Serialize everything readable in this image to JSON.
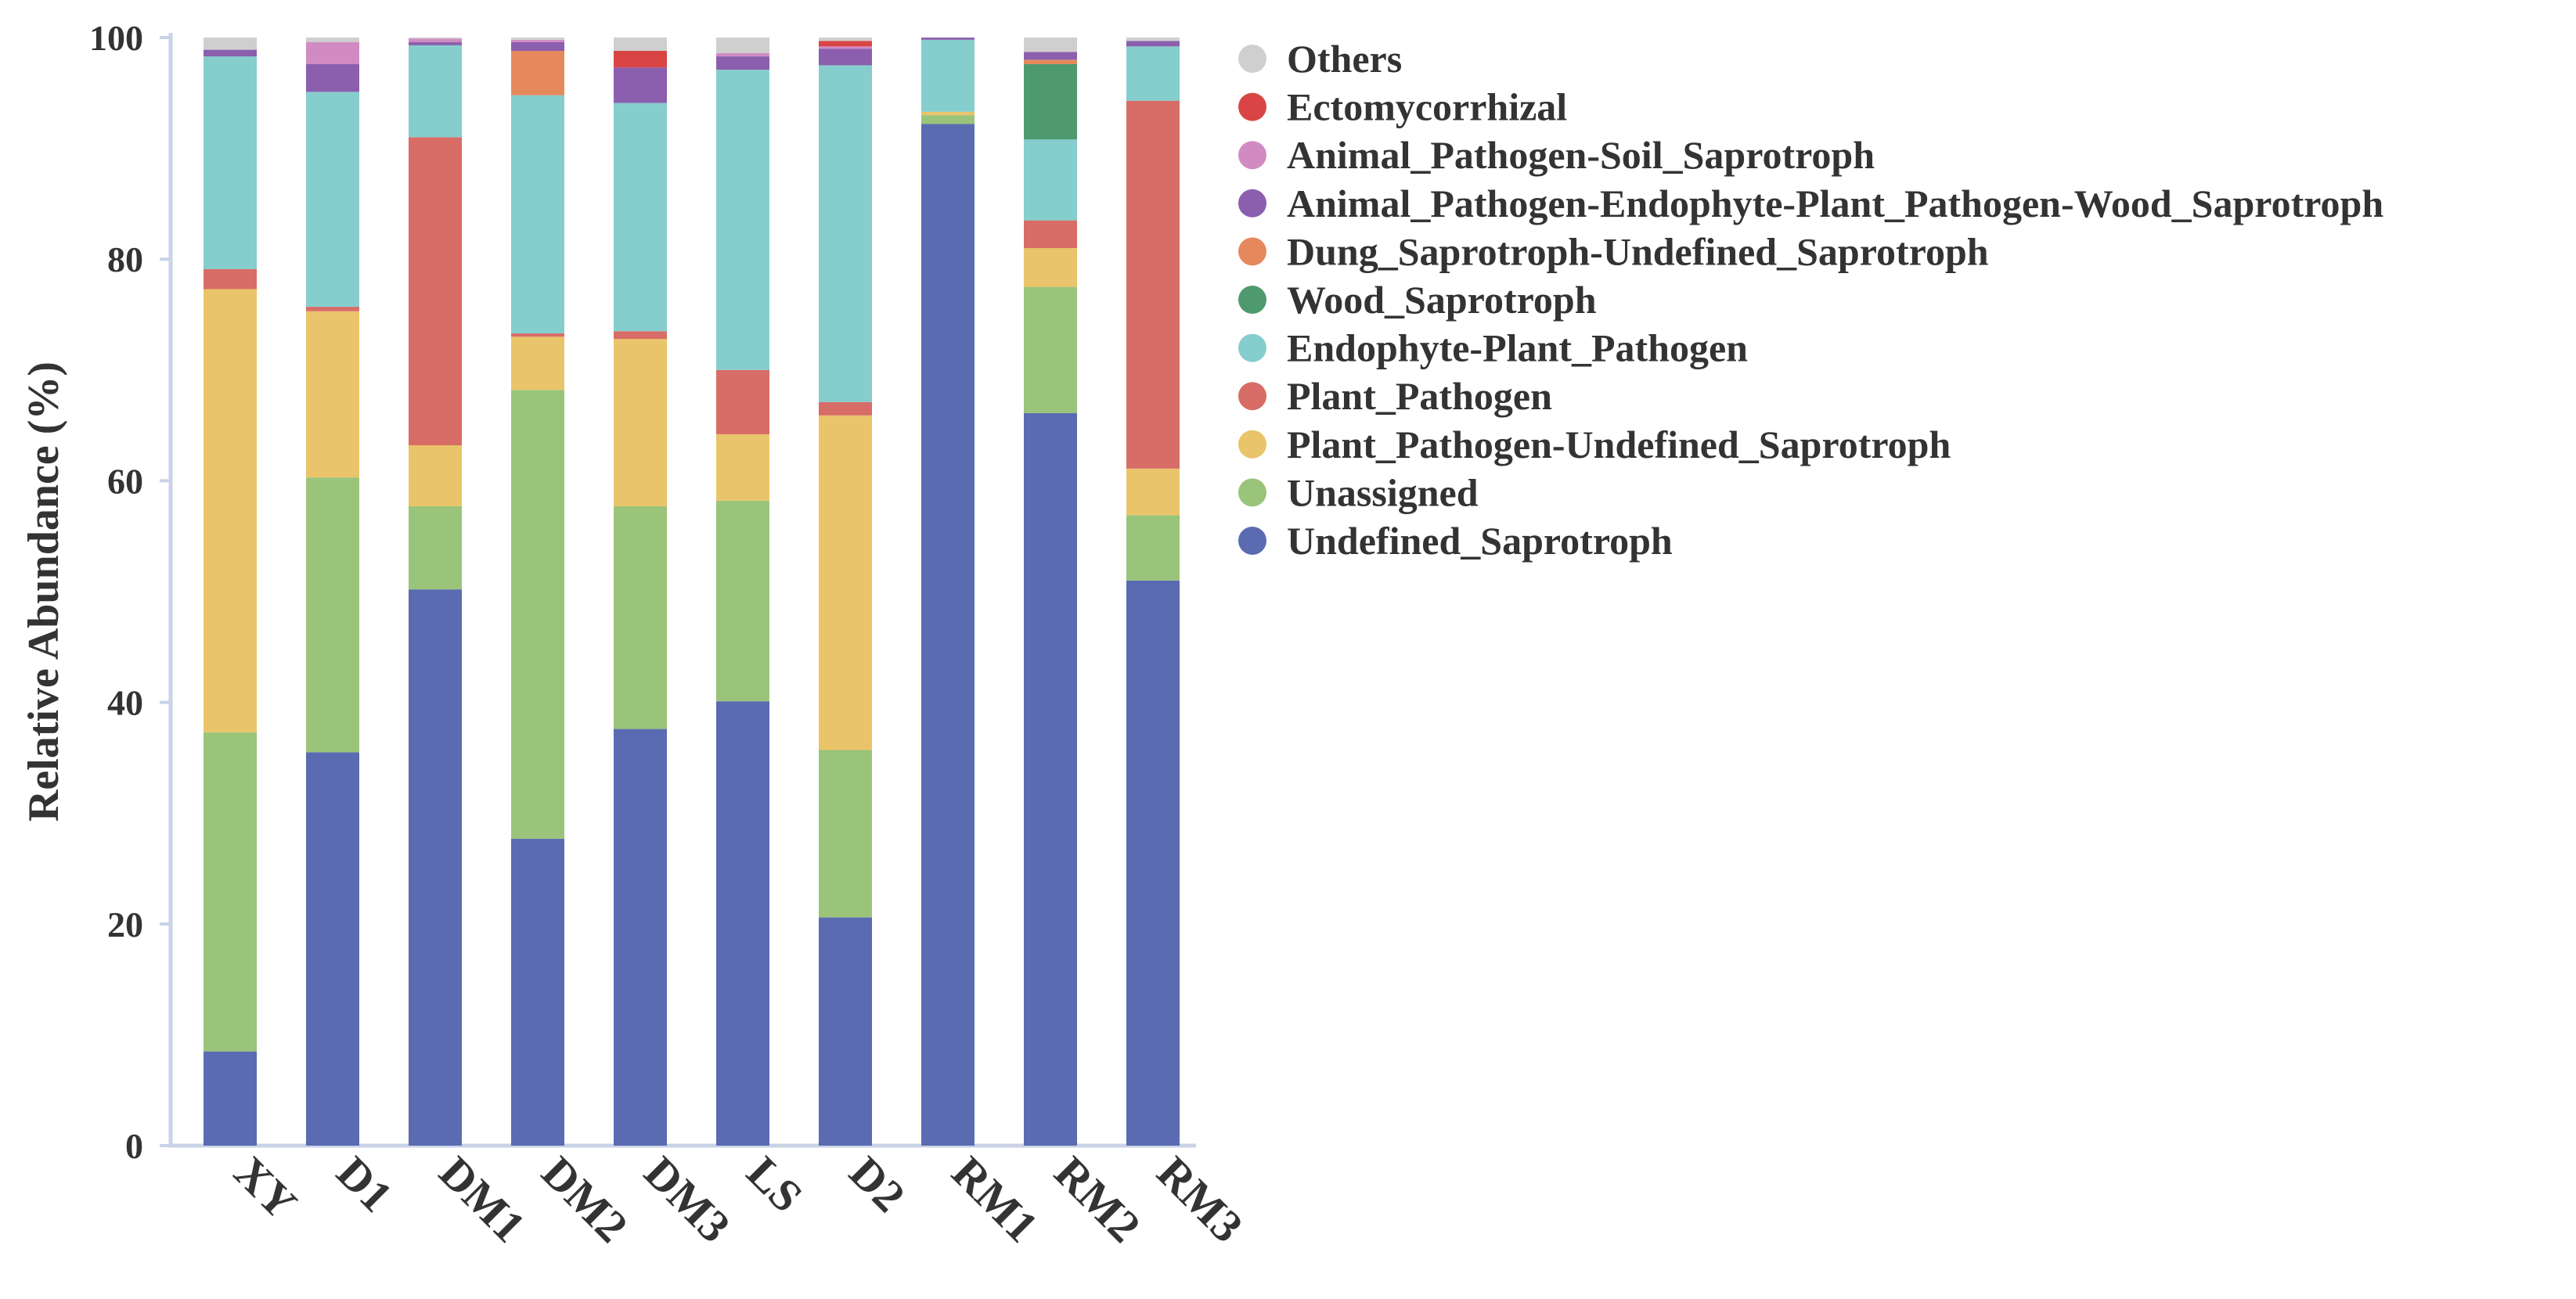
{
  "chart_data": {
    "type": "bar",
    "stacked": true,
    "title": "",
    "xlabel": "",
    "ylabel": "Relative Abundance (%)",
    "ylim": [
      0,
      100
    ],
    "yticks": [
      "0",
      "20",
      "40",
      "60",
      "80",
      "100"
    ],
    "grid": false,
    "legend_position": "right",
    "categories": [
      "XY",
      "D1",
      "DM1",
      "DM2",
      "DM3",
      "LS",
      "D2",
      "RM1",
      "RM2",
      "RM3"
    ],
    "series": [
      {
        "name": "Undefined_Saprotroph",
        "color": "#5A6BB2",
        "values": [
          8.5,
          35.5,
          50.2,
          27.7,
          37.6,
          40.1,
          20.6,
          92.2,
          66.1,
          51.0
        ]
      },
      {
        "name": "Unassigned",
        "color": "#9AC47A",
        "values": [
          28.8,
          24.8,
          7.5,
          40.5,
          20.1,
          18.1,
          15.1,
          0.8,
          11.4,
          5.9
        ]
      },
      {
        "name": "Plant_Pathogen-Undefined_Saprotroph",
        "color": "#EAC46A",
        "values": [
          40.0,
          15.0,
          5.5,
          4.8,
          15.1,
          6.0,
          30.2,
          0.3,
          3.5,
          4.2
        ]
      },
      {
        "name": "Plant_Pathogen",
        "color": "#D86C66",
        "values": [
          1.8,
          0.4,
          27.8,
          0.3,
          0.7,
          5.8,
          1.2,
          0.0,
          2.5,
          33.2
        ]
      },
      {
        "name": "Endophyte-Plant_Pathogen",
        "color": "#86CDCD",
        "values": [
          19.2,
          19.4,
          8.3,
          21.5,
          20.6,
          27.1,
          30.4,
          6.5,
          7.3,
          4.9
        ]
      },
      {
        "name": "Wood_Saprotroph",
        "color": "#4E9A6E",
        "values": [
          0.0,
          0.0,
          0.0,
          0.0,
          0.0,
          0.0,
          0.0,
          0.0,
          6.8,
          0.0
        ]
      },
      {
        "name": "Dung_Saprotroph-Undefined_Saprotroph",
        "color": "#E5895C",
        "values": [
          0.0,
          0.0,
          0.0,
          4.0,
          0.0,
          0.0,
          0.0,
          0.0,
          0.4,
          0.0
        ]
      },
      {
        "name": "Animal_Pathogen-Endophyte-Plant_Pathogen-Wood_Saprotroph",
        "color": "#8B5FAE",
        "values": [
          0.6,
          2.5,
          0.3,
          0.8,
          3.2,
          1.2,
          1.5,
          0.2,
          0.7,
          0.5
        ]
      },
      {
        "name": "Animal_Pathogen-Soil_Saprotroph",
        "color": "#D18BC2",
        "values": [
          0.0,
          2.0,
          0.3,
          0.2,
          0.0,
          0.3,
          0.2,
          0.0,
          0.0,
          0.0
        ]
      },
      {
        "name": "Ectomycorrhizal",
        "color": "#D94545",
        "values": [
          0.0,
          0.0,
          0.0,
          0.0,
          1.5,
          0.0,
          0.5,
          0.0,
          0.0,
          0.0
        ]
      },
      {
        "name": "Others",
        "color": "#CFCFCF",
        "values": [
          1.1,
          0.4,
          0.1,
          0.2,
          1.2,
          1.4,
          0.3,
          0.0,
          1.3,
          0.3
        ]
      }
    ]
  }
}
